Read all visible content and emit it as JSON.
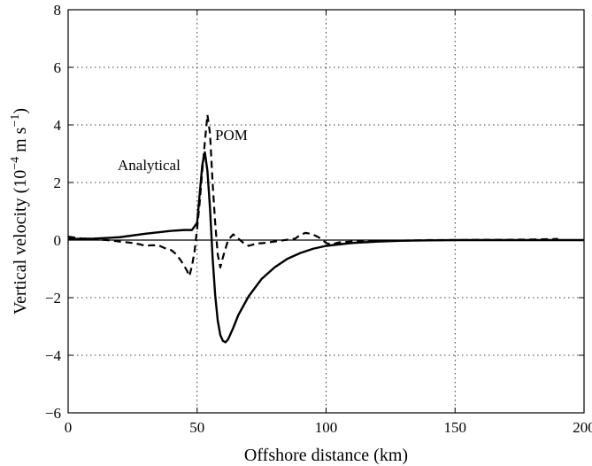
{
  "chart_data": {
    "type": "line",
    "title": "",
    "xlabel": "Offshore distance (km)",
    "ylabel": {
      "prefix": "Vertical velocity (10",
      "exponent": "−4",
      "middle": " m s",
      "exponent2": "−1",
      "suffix": ")"
    },
    "xlim": [
      0,
      200
    ],
    "ylim": [
      -6,
      8
    ],
    "xticks": [
      0,
      50,
      100,
      150,
      200
    ],
    "yticks": [
      -6,
      -4,
      -2,
      0,
      2,
      4,
      6,
      8
    ],
    "xtick_labels": [
      "0",
      "50",
      "100",
      "150",
      "200"
    ],
    "ytick_labels": [
      "−6",
      "−4",
      "−2",
      "0",
      "2",
      "4",
      "6",
      "8"
    ],
    "grid": true,
    "zero_line": true,
    "series": [
      {
        "name": "Analytical",
        "style": "solid",
        "color": "#000000",
        "x": [
          0,
          10,
          20,
          30,
          40,
          45,
          48,
          50,
          51,
          52,
          53,
          54,
          55,
          56,
          57,
          58,
          59,
          60,
          61,
          62,
          64,
          66,
          70,
          75,
          80,
          85,
          90,
          95,
          100,
          110,
          120,
          130,
          140,
          150,
          175,
          200
        ],
        "y": [
          0.04,
          0.05,
          0.1,
          0.22,
          0.32,
          0.35,
          0.35,
          0.6,
          1.6,
          2.6,
          3.05,
          2.4,
          1.1,
          -0.6,
          -1.9,
          -2.8,
          -3.3,
          -3.5,
          -3.55,
          -3.45,
          -3.05,
          -2.6,
          -1.95,
          -1.35,
          -0.95,
          -0.65,
          -0.45,
          -0.3,
          -0.2,
          -0.1,
          -0.05,
          -0.02,
          -0.01,
          0,
          0,
          0
        ]
      },
      {
        "name": "POM",
        "style": "dashed",
        "color": "#000000",
        "x": [
          0,
          5,
          10,
          15,
          20,
          25,
          28,
          30,
          32,
          35,
          38,
          40,
          42,
          44,
          46,
          47,
          48,
          49,
          50,
          51,
          52,
          53,
          54,
          55,
          56,
          57,
          58,
          59,
          60,
          62,
          64,
          66,
          68,
          70,
          73,
          76,
          80,
          84,
          88,
          90,
          92,
          94,
          96,
          98,
          100,
          102,
          105,
          110,
          120,
          130,
          140,
          150,
          160,
          170,
          180,
          190
        ],
        "y": [
          0.12,
          0.06,
          0.03,
          0.0,
          -0.05,
          -0.1,
          -0.15,
          -0.2,
          -0.18,
          -0.18,
          -0.3,
          -0.35,
          -0.5,
          -0.75,
          -1.05,
          -1.25,
          -0.9,
          -0.4,
          0.4,
          1.3,
          2.4,
          3.4,
          4.35,
          3.7,
          2.0,
          0.6,
          -0.5,
          -0.95,
          -0.6,
          0.0,
          0.2,
          0.05,
          -0.1,
          -0.2,
          -0.12,
          -0.1,
          -0.05,
          0.0,
          0.05,
          0.18,
          0.25,
          0.22,
          0.15,
          0.05,
          -0.1,
          -0.15,
          -0.08,
          -0.05,
          -0.03,
          -0.02,
          0.0,
          0.0,
          0.01,
          0.01,
          0.02,
          0.04
        ]
      }
    ],
    "annotations": [
      {
        "text": "Analytical",
        "series": "Analytical"
      },
      {
        "text": "POM",
        "series": "POM"
      }
    ]
  }
}
